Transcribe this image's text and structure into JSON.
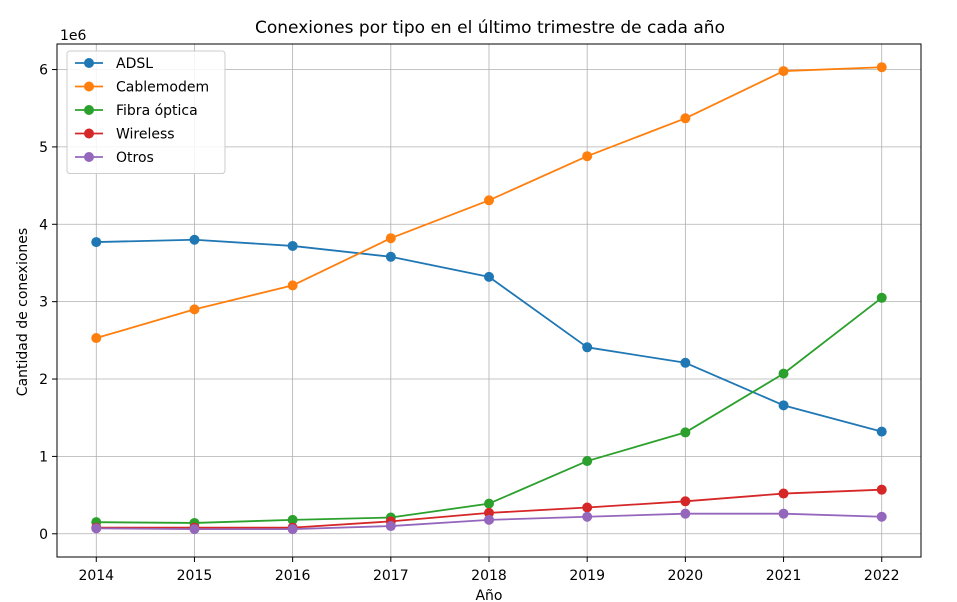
{
  "chart_data": {
    "type": "line",
    "title": "Conexiones por tipo en el último trimestre de cada año",
    "xlabel": "Año",
    "ylabel": "Cantidad de conexiones",
    "y_offset_label": "1e6",
    "x": [
      2014,
      2015,
      2016,
      2017,
      2018,
      2019,
      2020,
      2021,
      2022
    ],
    "x_tick_labels": [
      "2014",
      "2015",
      "2016",
      "2017",
      "2018",
      "2019",
      "2020",
      "2021",
      "2022"
    ],
    "y_ticks": [
      0,
      1,
      2,
      3,
      4,
      5,
      6
    ],
    "y_tick_labels": [
      "0",
      "1",
      "2",
      "3",
      "4",
      "5",
      "6"
    ],
    "xlim": [
      2013.6,
      2022.4
    ],
    "ylim": [
      -0.3,
      6.33
    ],
    "y_unit_multiplier": 1000000,
    "grid": true,
    "legend_position": "top-left",
    "series": [
      {
        "name": "ADSL",
        "color": "#1f77b4",
        "values": [
          3.77,
          3.8,
          3.72,
          3.58,
          3.32,
          2.41,
          2.21,
          1.66,
          1.32
        ]
      },
      {
        "name": "Cablemodem",
        "color": "#ff7f0e",
        "values": [
          2.53,
          2.9,
          3.21,
          3.82,
          4.31,
          4.88,
          5.37,
          5.98,
          6.03
        ]
      },
      {
        "name": "Fibra óptica",
        "color": "#2ca02c",
        "values": [
          0.15,
          0.14,
          0.18,
          0.21,
          0.39,
          0.94,
          1.31,
          2.07,
          3.05
        ]
      },
      {
        "name": "Wireless",
        "color": "#d62728",
        "values": [
          0.08,
          0.08,
          0.08,
          0.16,
          0.27,
          0.34,
          0.42,
          0.52,
          0.57
        ]
      },
      {
        "name": "Otros",
        "color": "#9467bd",
        "values": [
          0.07,
          0.06,
          0.06,
          0.1,
          0.18,
          0.22,
          0.26,
          0.26,
          0.22
        ]
      }
    ]
  }
}
